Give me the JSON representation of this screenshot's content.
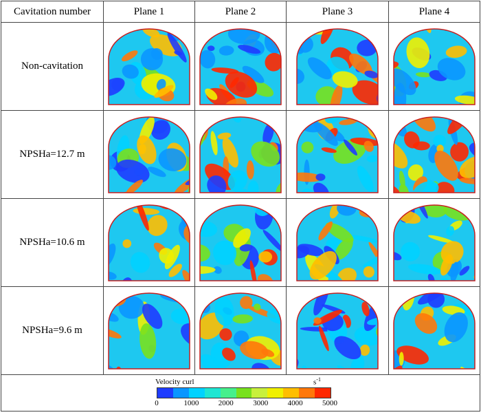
{
  "header": {
    "col0": "Cavitation number",
    "planes": [
      "Plane 1",
      "Plane 2",
      "Plane 3",
      "Plane 4"
    ]
  },
  "rows": [
    {
      "label": "Non-cavitation"
    },
    {
      "label": "NPSHa=12.7 m"
    },
    {
      "label": "NPSHa=10.6 m"
    },
    {
      "label": "NPSHa=9.6 m"
    }
  ],
  "legend": {
    "title": "Velocity curl",
    "unit": "s",
    "unit_exp": "-1",
    "ticks": [
      "0",
      "1000",
      "2000",
      "3000",
      "4000",
      "5000"
    ],
    "range": [
      0,
      5000
    ],
    "colors": [
      "#1e3cff",
      "#0a96ff",
      "#00d2ff",
      "#1ee6d2",
      "#46f08c",
      "#78e11e",
      "#c8f03c",
      "#f0f000",
      "#ffbe00",
      "#ff780a",
      "#ff2800"
    ]
  }
}
